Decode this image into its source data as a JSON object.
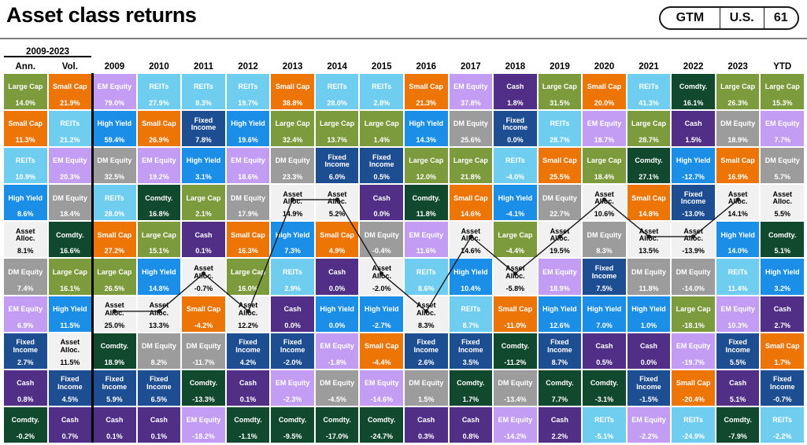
{
  "header": {
    "title": "Asset class returns",
    "badge": {
      "gtm": "GTM",
      "region": "U.S.",
      "page": "61"
    }
  },
  "chart_data": {
    "type": "table",
    "title": "Asset class returns",
    "period_label": "2009-2023",
    "note": "quilt chart of annual asset class returns ranked best-to-worst per column",
    "asset_styles": {
      "Large Cap": {
        "bg": "#7c9b3d",
        "fg": "#ffffff"
      },
      "Small Cap": {
        "bg": "#ec7505",
        "fg": "#ffffff"
      },
      "REITs": {
        "bg": "#6fcdf0",
        "fg": "#ffffff"
      },
      "EM Equity": {
        "bg": "#c39df3",
        "fg": "#ffffff"
      },
      "DM Equity": {
        "bg": "#9c9c9c",
        "fg": "#ffffff"
      },
      "High Yield": {
        "bg": "#1b8fe8",
        "fg": "#ffffff"
      },
      "Fixed Income": {
        "bg": "#1e4e92",
        "fg": "#ffffff"
      },
      "Cash": {
        "bg": "#522f87",
        "fg": "#ffffff"
      },
      "Comdty.": {
        "bg": "#11492f",
        "fg": "#ffffff"
      },
      "Asset Alloc.": {
        "bg": "#f1f1f1",
        "fg": "#000000"
      }
    },
    "trendline": {
      "asset": "Asset Alloc.",
      "start_column": "2009",
      "end_column": "2023",
      "color": "#1a1a1a"
    },
    "columns": [
      {
        "header": "Ann.",
        "cells": [
          {
            "asset": "Large Cap",
            "value": "14.0%"
          },
          {
            "asset": "Small Cap",
            "value": "11.3%"
          },
          {
            "asset": "REITs",
            "value": "10.9%"
          },
          {
            "asset": "High Yield",
            "value": "8.6%"
          },
          {
            "asset": "Asset Alloc.",
            "value": "8.1%"
          },
          {
            "asset": "DM Equity",
            "value": "7.4%"
          },
          {
            "asset": "EM Equity",
            "value": "6.9%"
          },
          {
            "asset": "Fixed Income",
            "value": "2.7%"
          },
          {
            "asset": "Cash",
            "value": "0.8%"
          },
          {
            "asset": "Comdty.",
            "value": "-0.2%"
          }
        ]
      },
      {
        "header": "Vol.",
        "cells": [
          {
            "asset": "Small Cap",
            "value": "21.9%"
          },
          {
            "asset": "REITs",
            "value": "21.2%"
          },
          {
            "asset": "EM Equity",
            "value": "20.3%"
          },
          {
            "asset": "DM Equity",
            "value": "18.4%"
          },
          {
            "asset": "Comdty.",
            "value": "16.6%"
          },
          {
            "asset": "Large Cap",
            "value": "16.1%"
          },
          {
            "asset": "High Yield",
            "value": "11.5%"
          },
          {
            "asset": "Asset Alloc.",
            "value": "11.5%"
          },
          {
            "asset": "Fixed Income",
            "value": "4.5%"
          },
          {
            "asset": "Cash",
            "value": "0.7%"
          }
        ]
      },
      {
        "header": "2009",
        "cells": [
          {
            "asset": "EM Equity",
            "value": "79.0%"
          },
          {
            "asset": "High Yield",
            "value": "59.4%"
          },
          {
            "asset": "DM Equity",
            "value": "32.5%"
          },
          {
            "asset": "REITs",
            "value": "28.0%"
          },
          {
            "asset": "Small Cap",
            "value": "27.2%"
          },
          {
            "asset": "Large Cap",
            "value": "26.5%"
          },
          {
            "asset": "Asset Alloc.",
            "value": "25.0%"
          },
          {
            "asset": "Comdty.",
            "value": "18.9%"
          },
          {
            "asset": "Fixed Income",
            "value": "5.9%"
          },
          {
            "asset": "Cash",
            "value": "0.1%"
          }
        ]
      },
      {
        "header": "2010",
        "cells": [
          {
            "asset": "REITs",
            "value": "27.9%"
          },
          {
            "asset": "Small Cap",
            "value": "26.9%"
          },
          {
            "asset": "EM Equity",
            "value": "19.2%"
          },
          {
            "asset": "Comdty.",
            "value": "16.8%"
          },
          {
            "asset": "Large Cap",
            "value": "15.1%"
          },
          {
            "asset": "High Yield",
            "value": "14.8%"
          },
          {
            "asset": "Asset Alloc.",
            "value": "13.3%"
          },
          {
            "asset": "DM Equity",
            "value": "8.2%"
          },
          {
            "asset": "Fixed Income",
            "value": "6.5%"
          },
          {
            "asset": "Cash",
            "value": "0.1%"
          }
        ]
      },
      {
        "header": "2011",
        "cells": [
          {
            "asset": "REITs",
            "value": "8.3%"
          },
          {
            "asset": "Fixed Income",
            "value": "7.8%"
          },
          {
            "asset": "High Yield",
            "value": "3.1%"
          },
          {
            "asset": "Large Cap",
            "value": "2.1%"
          },
          {
            "asset": "Cash",
            "value": "0.1%"
          },
          {
            "asset": "Asset Alloc.",
            "value": "-0.7%"
          },
          {
            "asset": "Small Cap",
            "value": "-4.2%"
          },
          {
            "asset": "DM Equity",
            "value": "-11.7%"
          },
          {
            "asset": "Comdty.",
            "value": "-13.3%"
          },
          {
            "asset": "EM Equity",
            "value": "-18.2%"
          }
        ]
      },
      {
        "header": "2012",
        "cells": [
          {
            "asset": "REITs",
            "value": "19.7%"
          },
          {
            "asset": "High Yield",
            "value": "19.6%"
          },
          {
            "asset": "EM Equity",
            "value": "18.6%"
          },
          {
            "asset": "DM Equity",
            "value": "17.9%"
          },
          {
            "asset": "Small Cap",
            "value": "16.3%"
          },
          {
            "asset": "Large Cap",
            "value": "16.0%"
          },
          {
            "asset": "Asset Alloc.",
            "value": "12.2%"
          },
          {
            "asset": "Fixed Income",
            "value": "4.2%"
          },
          {
            "asset": "Cash",
            "value": "0.1%"
          },
          {
            "asset": "Comdty.",
            "value": "-1.1%"
          }
        ]
      },
      {
        "header": "2013",
        "cells": [
          {
            "asset": "Small Cap",
            "value": "38.8%"
          },
          {
            "asset": "Large Cap",
            "value": "32.4%"
          },
          {
            "asset": "DM Equity",
            "value": "23.3%"
          },
          {
            "asset": "Asset Alloc.",
            "value": "14.9%"
          },
          {
            "asset": "High Yield",
            "value": "7.3%"
          },
          {
            "asset": "REITs",
            "value": "2.9%"
          },
          {
            "asset": "Cash",
            "value": "0.0%"
          },
          {
            "asset": "Fixed Income",
            "value": "-2.0%"
          },
          {
            "asset": "EM Equity",
            "value": "-2.3%"
          },
          {
            "asset": "Comdty.",
            "value": "-9.5%"
          }
        ]
      },
      {
        "header": "2014",
        "cells": [
          {
            "asset": "REITs",
            "value": "28.0%"
          },
          {
            "asset": "Large Cap",
            "value": "13.7%"
          },
          {
            "asset": "Fixed Income",
            "value": "6.0%"
          },
          {
            "asset": "Asset Alloc.",
            "value": "5.2%"
          },
          {
            "asset": "Small Cap",
            "value": "4.9%"
          },
          {
            "asset": "Cash",
            "value": "0.0%"
          },
          {
            "asset": "High Yield",
            "value": "0.0%"
          },
          {
            "asset": "EM Equity",
            "value": "-1.8%"
          },
          {
            "asset": "DM Equity",
            "value": "-4.5%"
          },
          {
            "asset": "Comdty.",
            "value": "-17.0%"
          }
        ]
      },
      {
        "header": "2015",
        "cells": [
          {
            "asset": "REITs",
            "value": "2.8%"
          },
          {
            "asset": "Large Cap",
            "value": "1.4%"
          },
          {
            "asset": "Fixed Income",
            "value": "0.5%"
          },
          {
            "asset": "Cash",
            "value": "0.0%"
          },
          {
            "asset": "DM Equity",
            "value": "-0.4%"
          },
          {
            "asset": "Asset Alloc.",
            "value": "-2.0%"
          },
          {
            "asset": "High Yield",
            "value": "-2.7%"
          },
          {
            "asset": "Small Cap",
            "value": "-4.4%"
          },
          {
            "asset": "EM Equity",
            "value": "-14.6%"
          },
          {
            "asset": "Comdty.",
            "value": "-24.7%"
          }
        ]
      },
      {
        "header": "2016",
        "cells": [
          {
            "asset": "Small Cap",
            "value": "21.3%"
          },
          {
            "asset": "High Yield",
            "value": "14.3%"
          },
          {
            "asset": "Large Cap",
            "value": "12.0%"
          },
          {
            "asset": "Comdty.",
            "value": "11.8%"
          },
          {
            "asset": "EM Equity",
            "value": "11.6%"
          },
          {
            "asset": "REITs",
            "value": "8.6%"
          },
          {
            "asset": "Asset Alloc.",
            "value": "8.3%"
          },
          {
            "asset": "Fixed Income",
            "value": "2.6%"
          },
          {
            "asset": "DM Equity",
            "value": "1.5%"
          },
          {
            "asset": "Cash",
            "value": "0.3%"
          }
        ]
      },
      {
        "header": "2017",
        "cells": [
          {
            "asset": "EM Equity",
            "value": "37.8%"
          },
          {
            "asset": "DM Equity",
            "value": "25.6%"
          },
          {
            "asset": "Large Cap",
            "value": "21.8%"
          },
          {
            "asset": "Small Cap",
            "value": "14.6%"
          },
          {
            "asset": "Asset Alloc.",
            "value": "14.6%"
          },
          {
            "asset": "High Yield",
            "value": "10.4%"
          },
          {
            "asset": "REITs",
            "value": "8.7%"
          },
          {
            "asset": "Fixed Income",
            "value": "3.5%"
          },
          {
            "asset": "Comdty.",
            "value": "1.7%"
          },
          {
            "asset": "Cash",
            "value": "0.8%"
          }
        ]
      },
      {
        "header": "2018",
        "cells": [
          {
            "asset": "Cash",
            "value": "1.8%"
          },
          {
            "asset": "Fixed Income",
            "value": "0.0%"
          },
          {
            "asset": "REITs",
            "value": "-4.0%"
          },
          {
            "asset": "High Yield",
            "value": "-4.1%"
          },
          {
            "asset": "Large Cap",
            "value": "-4.4%"
          },
          {
            "asset": "Asset Alloc.",
            "value": "-5.8%"
          },
          {
            "asset": "Small Cap",
            "value": "-11.0%"
          },
          {
            "asset": "Comdty.",
            "value": "-11.2%"
          },
          {
            "asset": "DM Equity",
            "value": "-13.4%"
          },
          {
            "asset": "EM Equity",
            "value": "-14.2%"
          }
        ]
      },
      {
        "header": "2019",
        "cells": [
          {
            "asset": "Large Cap",
            "value": "31.5%"
          },
          {
            "asset": "REITs",
            "value": "28.7%"
          },
          {
            "asset": "Small Cap",
            "value": "25.5%"
          },
          {
            "asset": "DM Equity",
            "value": "22.7%"
          },
          {
            "asset": "Asset Alloc.",
            "value": "19.5%"
          },
          {
            "asset": "EM Equity",
            "value": "18.9%"
          },
          {
            "asset": "High Yield",
            "value": "12.6%"
          },
          {
            "asset": "Fixed Income",
            "value": "8.7%"
          },
          {
            "asset": "Comdty.",
            "value": "7.7%"
          },
          {
            "asset": "Cash",
            "value": "2.2%"
          }
        ]
      },
      {
        "header": "2020",
        "cells": [
          {
            "asset": "Small Cap",
            "value": "20.0%"
          },
          {
            "asset": "EM Equity",
            "value": "18.7%"
          },
          {
            "asset": "Large Cap",
            "value": "18.4%"
          },
          {
            "asset": "Asset Alloc.",
            "value": "10.6%"
          },
          {
            "asset": "DM Equity",
            "value": "8.3%"
          },
          {
            "asset": "Fixed Income",
            "value": "7.5%"
          },
          {
            "asset": "High Yield",
            "value": "7.0%"
          },
          {
            "asset": "Cash",
            "value": "0.5%"
          },
          {
            "asset": "Comdty.",
            "value": "-3.1%"
          },
          {
            "asset": "REITs",
            "value": "-5.1%"
          }
        ]
      },
      {
        "header": "2021",
        "cells": [
          {
            "asset": "REITs",
            "value": "41.3%"
          },
          {
            "asset": "Large Cap",
            "value": "28.7%"
          },
          {
            "asset": "Comdty.",
            "value": "27.1%"
          },
          {
            "asset": "Small Cap",
            "value": "14.8%"
          },
          {
            "asset": "Asset Alloc.",
            "value": "13.5%"
          },
          {
            "asset": "DM Equity",
            "value": "11.8%"
          },
          {
            "asset": "High Yield",
            "value": "1.0%"
          },
          {
            "asset": "Cash",
            "value": "0.0%"
          },
          {
            "asset": "Fixed Income",
            "value": "-1.5%"
          },
          {
            "asset": "EM Equity",
            "value": "-2.2%"
          }
        ]
      },
      {
        "header": "2022",
        "cells": [
          {
            "asset": "Comdty.",
            "value": "16.1%"
          },
          {
            "asset": "Cash",
            "value": "1.5%"
          },
          {
            "asset": "High Yield",
            "value": "-12.7%"
          },
          {
            "asset": "Fixed Income",
            "value": "-13.0%"
          },
          {
            "asset": "Asset Alloc.",
            "value": "-13.9%"
          },
          {
            "asset": "DM Equity",
            "value": "-14.0%"
          },
          {
            "asset": "Large Cap",
            "value": "-18.1%"
          },
          {
            "asset": "EM Equity",
            "value": "-19.7%"
          },
          {
            "asset": "Small Cap",
            "value": "-20.4%"
          },
          {
            "asset": "REITs",
            "value": "-24.9%"
          }
        ]
      },
      {
        "header": "2023",
        "cells": [
          {
            "asset": "Large Cap",
            "value": "26.3%"
          },
          {
            "asset": "DM Equity",
            "value": "18.9%"
          },
          {
            "asset": "Small Cap",
            "value": "16.9%"
          },
          {
            "asset": "Asset Alloc.",
            "value": "14.1%"
          },
          {
            "asset": "High Yield",
            "value": "14.0%"
          },
          {
            "asset": "REITs",
            "value": "11.4%"
          },
          {
            "asset": "EM Equity",
            "value": "10.3%"
          },
          {
            "asset": "Fixed Income",
            "value": "5.5%"
          },
          {
            "asset": "Cash",
            "value": "5.1%"
          },
          {
            "asset": "Comdty.",
            "value": "-7.9%"
          }
        ]
      },
      {
        "header": "YTD",
        "cells": [
          {
            "asset": "Large Cap",
            "value": "15.3%"
          },
          {
            "asset": "EM Equity",
            "value": "7.7%"
          },
          {
            "asset": "DM Equity",
            "value": "5.7%"
          },
          {
            "asset": "Asset Alloc.",
            "value": "5.5%"
          },
          {
            "asset": "Comdty.",
            "value": "5.1%"
          },
          {
            "asset": "High Yield",
            "value": "3.2%"
          },
          {
            "asset": "Cash",
            "value": "2.7%"
          },
          {
            "asset": "Small Cap",
            "value": "1.7%"
          },
          {
            "asset": "Fixed Income",
            "value": "-0.7%"
          },
          {
            "asset": "REITs",
            "value": "-2.2%"
          }
        ]
      }
    ]
  }
}
